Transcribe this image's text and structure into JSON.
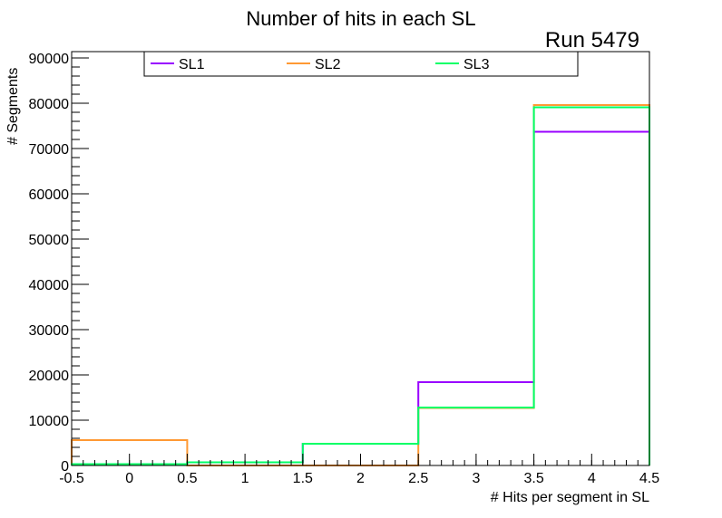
{
  "chart_data": {
    "type": "step-histogram",
    "title": "Number of hits in each SL",
    "annotation": "Run 5479",
    "xlabel": "# Hits per segment in SL",
    "ylabel": "# Segments",
    "xlim": [
      -0.5,
      4.5
    ],
    "ylim": [
      0,
      91400
    ],
    "bin_edges": [
      -0.5,
      0.5,
      1.5,
      2.5,
      3.5,
      4.5
    ],
    "x_ticks": [
      "-0.5",
      "0",
      "0.5",
      "1",
      "1.5",
      "2",
      "2.5",
      "3",
      "3.5",
      "4",
      "4.5"
    ],
    "x_tick_values": [
      -0.5,
      0,
      0.5,
      1,
      1.5,
      2,
      2.5,
      3,
      3.5,
      4,
      4.5
    ],
    "y_ticks": [
      "0",
      "10000",
      "20000",
      "30000",
      "40000",
      "50000",
      "60000",
      "70000",
      "80000",
      "90000"
    ],
    "y_tick_values": [
      0,
      10000,
      20000,
      30000,
      40000,
      50000,
      60000,
      70000,
      80000,
      90000
    ],
    "legend_position": "top",
    "grid": false,
    "series": [
      {
        "name": "SL1",
        "color": "#9900ff",
        "values": [
          300,
          700,
          4800,
          18400,
          73700
        ]
      },
      {
        "name": "SL2",
        "color": "#ff9933",
        "values": [
          5600,
          0,
          0,
          12700,
          79600
        ]
      },
      {
        "name": "SL3",
        "color": "#00ff66",
        "values": [
          300,
          700,
          4800,
          12800,
          79100
        ]
      }
    ]
  }
}
